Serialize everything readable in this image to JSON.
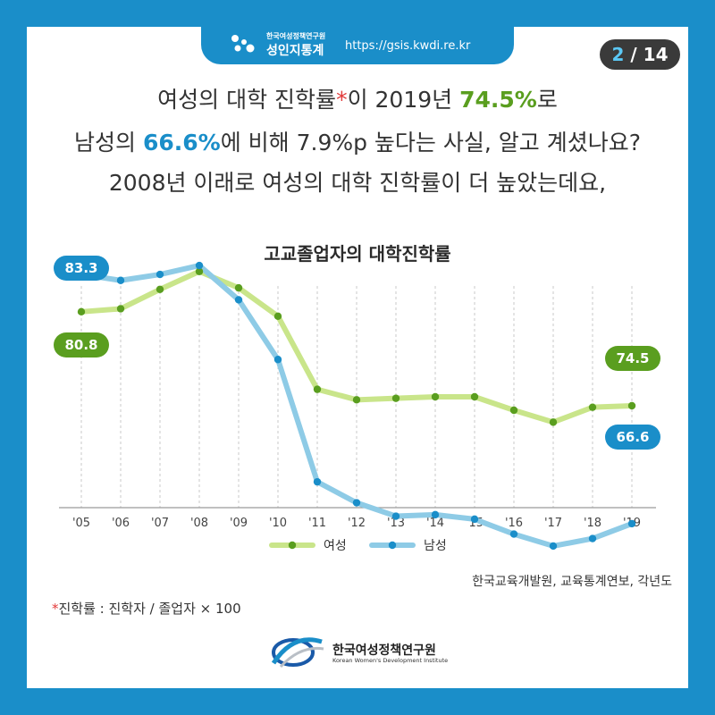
{
  "header": {
    "brand_small": "한국여성정책연구원",
    "brand_name": "성인지통계",
    "url": "https://gsis.kwdi.re.kr",
    "page_current": "2",
    "page_total": "/ 14"
  },
  "headline": {
    "line1_a": "여성의 대학 진학률",
    "line1_star": "*",
    "line1_b": "이 2019년 ",
    "line1_value": "74.5%",
    "line1_c": "로",
    "line2_a": "남성의 ",
    "line2_value": "66.6%",
    "line2_b": "에 비해 7.9%p 높다는 사실, 알고 계셨나요?",
    "line3": "2008년 이래로 여성의 대학 진학률이 더 높았는데요,"
  },
  "colors": {
    "accent_blue": "#1a8ec9",
    "women_line": "#c9e58a",
    "women_dot": "#5a9e1f",
    "men_line": "#8ecbe6",
    "men_dot": "#1a8ec9"
  },
  "chart_data": {
    "type": "line",
    "title": "고교졸업자의 대학진학률",
    "categories": [
      "'05",
      "'06",
      "'07",
      "'08",
      "'09",
      "'10",
      "'11",
      "'12",
      "'13",
      "'14",
      "'15",
      "'16",
      "'17",
      "'18",
      "'19"
    ],
    "series": [
      {
        "name": "여성",
        "values": [
          80.8,
          81.0,
          82.3,
          83.5,
          82.4,
          80.5,
          75.6,
          74.9,
          75.0,
          75.1,
          75.1,
          74.2,
          73.4,
          74.4,
          74.5
        ]
      },
      {
        "name": "남성",
        "values": [
          83.3,
          82.9,
          83.3,
          83.9,
          81.6,
          77.6,
          69.4,
          68.0,
          67.1,
          67.2,
          66.9,
          65.9,
          65.1,
          65.6,
          66.6
        ]
      }
    ],
    "labels": {
      "women_first": "80.8",
      "men_first": "83.3",
      "women_last": "74.5",
      "men_last": "66.6"
    },
    "ylim": [
      63,
      86
    ],
    "legend_position": "bottom-center"
  },
  "source": "한국교육개발원, 교육통계연보, 각년도",
  "footnote": {
    "star": "*",
    "text": "진학률 : 진학자 / 졸업자 × 100"
  },
  "org": {
    "name": "한국여성정책연구원",
    "english": "Korean Women's Development Institute"
  }
}
